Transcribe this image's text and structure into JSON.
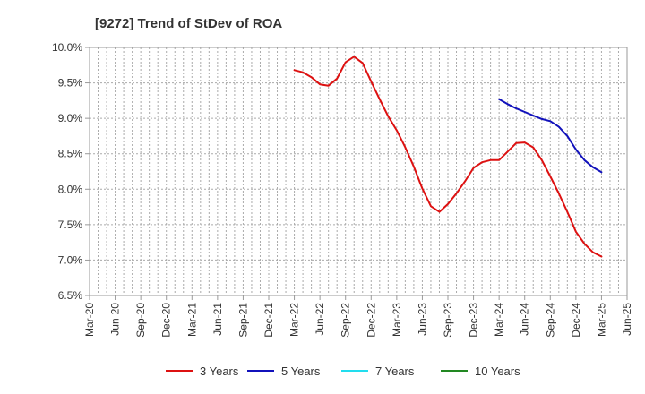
{
  "chart_data": {
    "type": "line",
    "title": "[9272]  Trend of StDev of ROA",
    "xlabel": "",
    "ylabel": "",
    "x_ticks": [
      "Mar-20",
      "Jun-20",
      "Sep-20",
      "Dec-20",
      "Mar-21",
      "Jun-21",
      "Sep-21",
      "Dec-21",
      "Mar-22",
      "Jun-22",
      "Sep-22",
      "Dec-22",
      "Mar-23",
      "Jun-23",
      "Sep-23",
      "Dec-23",
      "Mar-24",
      "Jun-24",
      "Sep-24",
      "Dec-24",
      "Mar-25",
      "Jun-25"
    ],
    "y_ticks": [
      "6.5%",
      "7.0%",
      "7.5%",
      "8.0%",
      "8.5%",
      "9.0%",
      "9.5%",
      "10.0%"
    ],
    "ylim": [
      6.5,
      10.0
    ],
    "grid": true,
    "legend_position": "bottom",
    "series": [
      {
        "name": "3 Years",
        "color": "#dd1111",
        "points": [
          [
            "Mar-22",
            9.68
          ],
          [
            "Apr-22",
            9.65
          ],
          [
            "May-22",
            9.58
          ],
          [
            "Jun-22",
            9.48
          ],
          [
            "Jul-22",
            9.46
          ],
          [
            "Aug-22",
            9.56
          ],
          [
            "Sep-22",
            9.79
          ],
          [
            "Oct-22",
            9.87
          ],
          [
            "Nov-22",
            9.78
          ],
          [
            "Dec-22",
            9.52
          ],
          [
            "Jan-23",
            9.27
          ],
          [
            "Feb-23",
            9.03
          ],
          [
            "Mar-23",
            8.83
          ],
          [
            "Apr-23",
            8.59
          ],
          [
            "May-23",
            8.32
          ],
          [
            "Jun-23",
            8.01
          ],
          [
            "Jul-23",
            7.76
          ],
          [
            "Aug-23",
            7.68
          ],
          [
            "Sep-23",
            7.79
          ],
          [
            "Oct-23",
            7.94
          ],
          [
            "Nov-23",
            8.11
          ],
          [
            "Dec-23",
            8.3
          ],
          [
            "Jan-24",
            8.38
          ],
          [
            "Feb-24",
            8.41
          ],
          [
            "Mar-24",
            8.41
          ],
          [
            "Apr-24",
            8.53
          ],
          [
            "May-24",
            8.65
          ],
          [
            "Jun-24",
            8.66
          ],
          [
            "Jul-24",
            8.59
          ],
          [
            "Aug-24",
            8.41
          ],
          [
            "Sep-24",
            8.18
          ],
          [
            "Oct-24",
            7.94
          ],
          [
            "Nov-24",
            7.68
          ],
          [
            "Dec-24",
            7.4
          ],
          [
            "Jan-25",
            7.23
          ],
          [
            "Feb-25",
            7.11
          ],
          [
            "Mar-25",
            7.05
          ]
        ]
      },
      {
        "name": "5 Years",
        "color": "#1111bb",
        "points": [
          [
            "Mar-24",
            9.27
          ],
          [
            "Apr-24",
            9.2
          ],
          [
            "May-24",
            9.14
          ],
          [
            "Jun-24",
            9.09
          ],
          [
            "Jul-24",
            9.04
          ],
          [
            "Aug-24",
            8.99
          ],
          [
            "Sep-24",
            8.96
          ],
          [
            "Oct-24",
            8.88
          ],
          [
            "Nov-24",
            8.75
          ],
          [
            "Dec-24",
            8.56
          ],
          [
            "Jan-25",
            8.41
          ],
          [
            "Feb-25",
            8.31
          ],
          [
            "Mar-25",
            8.24
          ]
        ]
      },
      {
        "name": "7 Years",
        "color": "#22ddee",
        "points": []
      },
      {
        "name": "10 Years",
        "color": "#228822",
        "points": []
      }
    ]
  }
}
